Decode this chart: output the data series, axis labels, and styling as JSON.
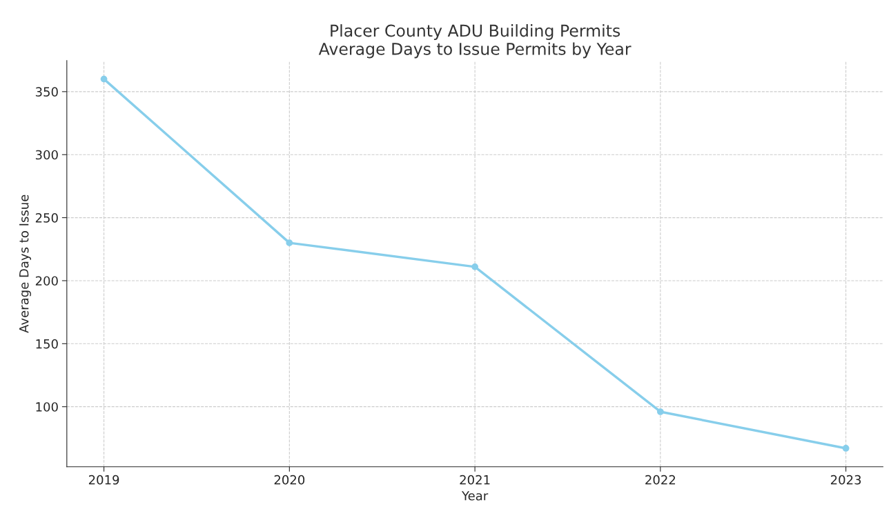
{
  "chart_data": {
    "type": "line",
    "title": "Placer County ADU Building Permits\nAverage Days to Issue Permits by Year",
    "xlabel": "Year",
    "ylabel": "Average Days to Issue",
    "x": [
      2019,
      2020,
      2021,
      2022,
      2023
    ],
    "series": [
      {
        "color": "#87ceeb",
        "values": [
          360,
          230,
          211,
          96,
          67
        ]
      }
    ],
    "xlim": [
      2018.8,
      2023.2
    ],
    "xticks": [
      2019,
      2020,
      2021,
      2022,
      2023
    ],
    "ylim": [
      52.35,
      374.65
    ],
    "yticks": [
      100,
      150,
      200,
      250,
      300,
      350
    ],
    "grid": true,
    "marker": "circle",
    "line_style": "solid"
  }
}
